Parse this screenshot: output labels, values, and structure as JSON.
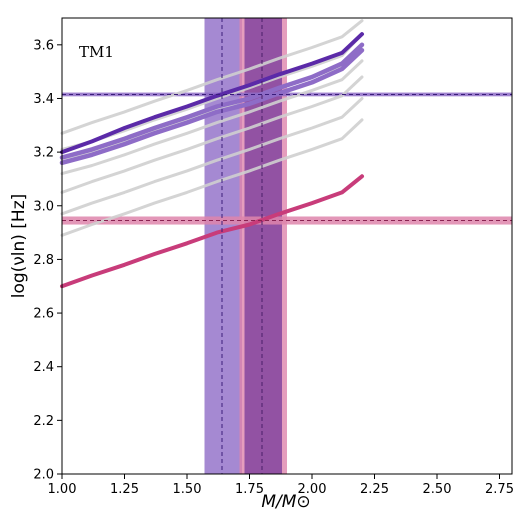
{
  "chart_data": {
    "type": "line",
    "annotation": "TM1",
    "xlabel": "M/M⊙",
    "ylabel": "log(νln) [Hz]",
    "xlim": [
      1.0,
      2.8
    ],
    "ylim": [
      2.0,
      3.7
    ],
    "x_ticks": [
      "1.00",
      "1.25",
      "1.50",
      "1.75",
      "2.00",
      "2.25",
      "2.50",
      "2.75"
    ],
    "x_tick_values": [
      1.0,
      1.25,
      1.5,
      1.75,
      2.0,
      2.25,
      2.5,
      2.75
    ],
    "y_ticks": [
      "2.0",
      "2.2",
      "2.4",
      "2.6",
      "2.8",
      "3.0",
      "3.2",
      "3.4",
      "3.6"
    ],
    "y_tick_values": [
      2.0,
      2.2,
      2.4,
      2.6,
      2.8,
      3.0,
      3.2,
      3.4,
      3.6
    ],
    "grid": false,
    "colors": {
      "gray": "#cfcfcf",
      "purple": "#5b2aa8",
      "purple_band": "#8e6cc7",
      "magenta": "#c83c7a",
      "magenta_band": "#de85ac",
      "overlap_band": "#84459f"
    },
    "gray_series": [
      {
        "x": [
          1.0,
          1.12,
          1.25,
          1.37,
          1.5,
          1.62,
          1.75,
          1.87,
          2.0,
          2.12,
          2.2
        ],
        "y": [
          3.27,
          3.31,
          3.35,
          3.39,
          3.43,
          3.47,
          3.51,
          3.55,
          3.59,
          3.63,
          3.69
        ]
      },
      {
        "x": [
          1.0,
          1.12,
          1.25,
          1.37,
          1.5,
          1.62,
          1.75,
          1.87,
          2.0,
          2.12,
          2.2
        ],
        "y": [
          3.21,
          3.24,
          3.28,
          3.32,
          3.36,
          3.4,
          3.44,
          3.48,
          3.52,
          3.56,
          3.64
        ]
      },
      {
        "x": [
          1.0,
          1.12,
          1.25,
          1.37,
          1.5,
          1.62,
          1.75,
          1.87,
          2.0,
          2.12,
          2.2
        ],
        "y": [
          3.17,
          3.2,
          3.24,
          3.28,
          3.32,
          3.36,
          3.4,
          3.44,
          3.48,
          3.52,
          3.6
        ]
      },
      {
        "x": [
          1.0,
          1.12,
          1.25,
          1.37,
          1.5,
          1.62,
          1.75,
          1.87,
          2.0,
          2.12,
          2.2
        ],
        "y": [
          3.12,
          3.15,
          3.19,
          3.23,
          3.27,
          3.31,
          3.35,
          3.39,
          3.43,
          3.47,
          3.54
        ]
      },
      {
        "x": [
          1.0,
          1.12,
          1.25,
          1.37,
          1.5,
          1.62,
          1.75,
          1.87,
          2.0,
          2.12,
          2.2
        ],
        "y": [
          3.05,
          3.09,
          3.13,
          3.17,
          3.21,
          3.25,
          3.29,
          3.33,
          3.37,
          3.41,
          3.48
        ]
      },
      {
        "x": [
          1.0,
          1.12,
          1.25,
          1.37,
          1.5,
          1.62,
          1.75,
          1.87,
          2.0,
          2.12,
          2.2
        ],
        "y": [
          2.97,
          3.01,
          3.05,
          3.09,
          3.13,
          3.17,
          3.21,
          3.25,
          3.29,
          3.33,
          3.4
        ]
      },
      {
        "x": [
          1.0,
          1.12,
          1.25,
          1.37,
          1.5,
          1.62,
          1.75,
          1.87,
          2.0,
          2.12,
          2.2
        ],
        "y": [
          2.89,
          2.93,
          2.97,
          3.01,
          3.05,
          3.09,
          3.13,
          3.17,
          3.21,
          3.25,
          3.32
        ]
      }
    ],
    "series": [
      {
        "color": "purple_band",
        "width": 4.5,
        "x": [
          1.0,
          1.12,
          1.25,
          1.37,
          1.5,
          1.62,
          1.75,
          1.87,
          2.0,
          2.12,
          2.2
        ],
        "y": [
          3.16,
          3.19,
          3.23,
          3.27,
          3.31,
          3.35,
          3.38,
          3.42,
          3.46,
          3.51,
          3.58
        ]
      },
      {
        "color": "purple_band",
        "width": 4.5,
        "x": [
          1.0,
          1.12,
          1.25,
          1.37,
          1.5,
          1.62,
          1.75,
          1.87,
          2.0,
          2.12,
          2.2
        ],
        "y": [
          3.18,
          3.21,
          3.25,
          3.29,
          3.33,
          3.37,
          3.4,
          3.44,
          3.48,
          3.53,
          3.6
        ]
      },
      {
        "color": "purple",
        "width": 4,
        "x": [
          1.0,
          1.12,
          1.25,
          1.37,
          1.5,
          1.62,
          1.75,
          1.87,
          2.0,
          2.12,
          2.2
        ],
        "y": [
          3.2,
          3.24,
          3.29,
          3.33,
          3.37,
          3.41,
          3.45,
          3.49,
          3.53,
          3.57,
          3.64
        ]
      },
      {
        "color": "magenta",
        "width": 4,
        "x": [
          1.0,
          1.12,
          1.25,
          1.37,
          1.5,
          1.62,
          1.75,
          1.87,
          2.0,
          2.12,
          2.2
        ],
        "y": [
          2.7,
          2.74,
          2.78,
          2.82,
          2.86,
          2.9,
          2.93,
          2.97,
          3.01,
          3.05,
          3.11
        ]
      }
    ],
    "horizontal_bands": [
      {
        "color": "purple_band",
        "center": 3.415,
        "low": 3.408,
        "high": 3.422
      },
      {
        "color": "magenta_band",
        "center": 2.945,
        "low": 2.93,
        "high": 2.96
      }
    ],
    "vertical_bands": [
      {
        "color": "purple_band",
        "center": 1.64,
        "low": 1.57,
        "high": 1.72
      },
      {
        "color": "magenta_band",
        "center": 1.8,
        "low": 1.71,
        "high": 1.9
      },
      {
        "color": "overlap_band",
        "center": 1.8,
        "low": 1.73,
        "high": 1.88
      }
    ]
  }
}
